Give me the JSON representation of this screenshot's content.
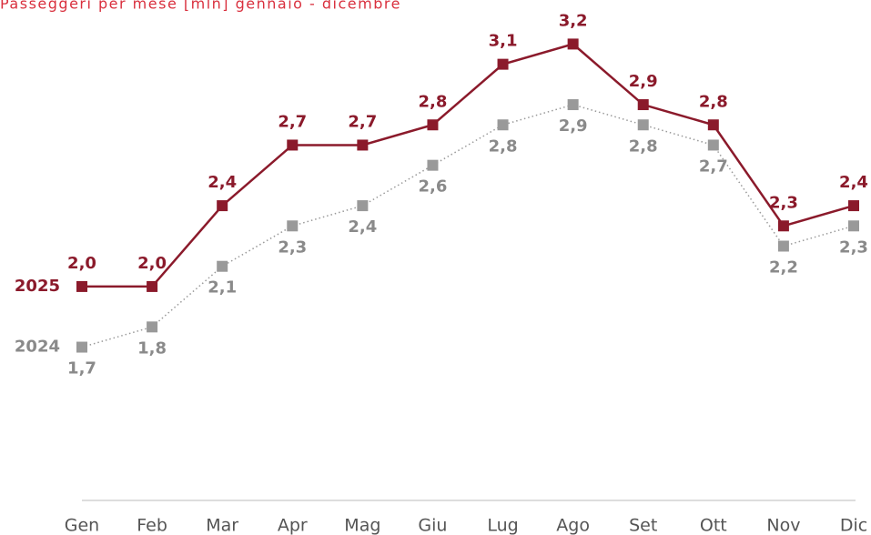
{
  "chart_data": {
    "type": "line",
    "title": "Passeggeri per mese [mln] gennaio - dicembre",
    "categories": [
      "Gen",
      "Feb",
      "Mar",
      "Apr",
      "Mag",
      "Giu",
      "Lug",
      "Ago",
      "Set",
      "Ott",
      "Nov",
      "Dic"
    ],
    "series": [
      {
        "name": "2025",
        "color": "#8b1a2b",
        "values": [
          2.0,
          2.0,
          2.4,
          2.7,
          2.7,
          2.8,
          3.1,
          3.2,
          2.9,
          2.8,
          2.3,
          2.4
        ],
        "value_labels": [
          "2,0",
          "2,0",
          "2,4",
          "2,7",
          "2,7",
          "2,8",
          "3,1",
          "3,2",
          "2,9",
          "2,8",
          "2,3",
          "2,4"
        ]
      },
      {
        "name": "2024",
        "color": "#999999",
        "values": [
          1.7,
          1.8,
          2.1,
          2.3,
          2.4,
          2.6,
          2.8,
          2.9,
          2.8,
          2.7,
          2.2,
          2.3
        ],
        "value_labels": [
          "1,7",
          "1,8",
          "2,1",
          "2,3",
          "2,4",
          "2,6",
          "2,8",
          "2,9",
          "2,8",
          "2,7",
          "2,2",
          "2,3"
        ]
      }
    ],
    "ylim": [
      1,
      3.4
    ]
  }
}
